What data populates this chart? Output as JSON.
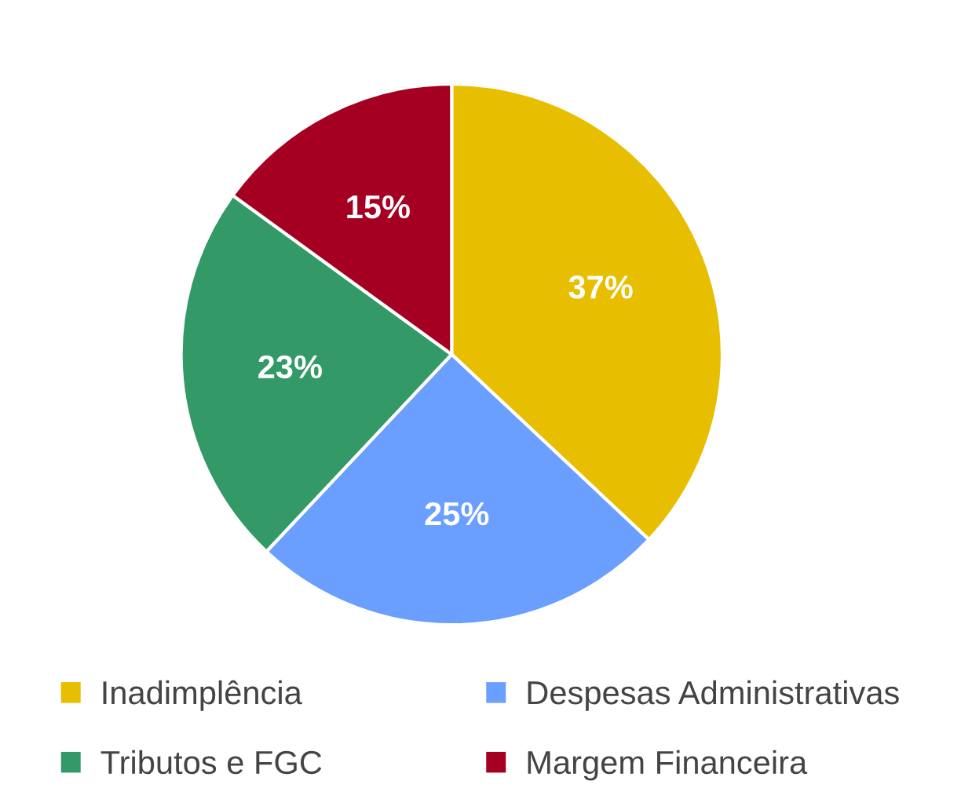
{
  "chart_data": {
    "type": "pie",
    "categories": [
      "Inadimplência",
      "Despesas Administrativas",
      "Tributos e FGC",
      "Margem Financeira"
    ],
    "values": [
      37,
      25,
      23,
      15
    ],
    "value_labels": [
      "37%",
      "25%",
      "23%",
      "15%"
    ],
    "colors": [
      "#e8be00",
      "#6a9eff",
      "#339966",
      "#a50021"
    ],
    "legend": "bottom"
  }
}
